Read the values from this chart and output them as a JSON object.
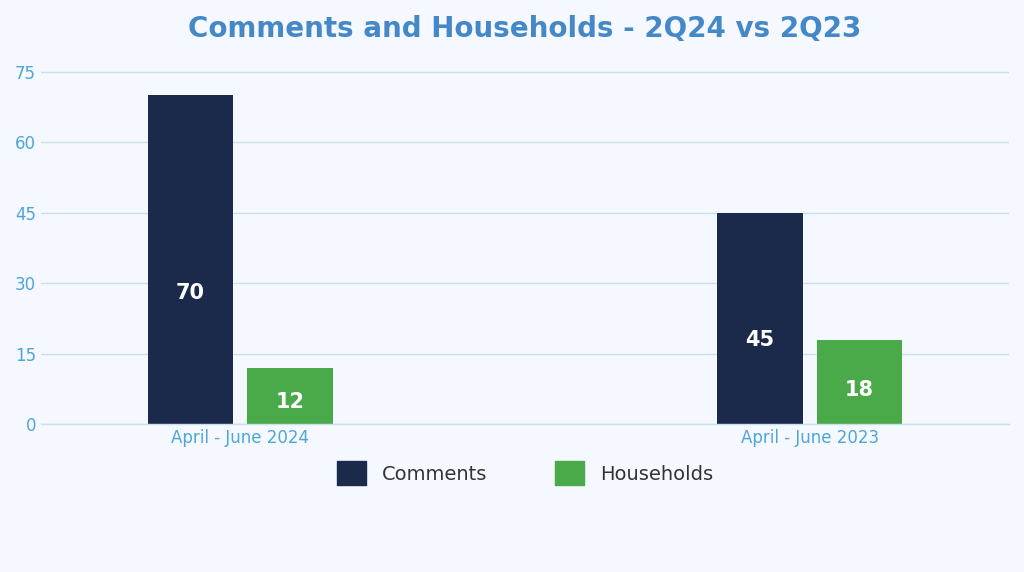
{
  "title": "Comments and Households - 2Q24 vs 2Q23",
  "title_color": "#4488c8",
  "title_fontsize": 20,
  "groups": [
    "April - June 2024",
    "April - June 2023"
  ],
  "series": {
    "Comments": [
      70,
      45
    ],
    "Households": [
      12,
      18
    ]
  },
  "bar_colors": {
    "Comments": "#1b2a4a",
    "Households": "#4aaa4a"
  },
  "ylim": [
    0,
    78
  ],
  "yticks": [
    0,
    15,
    30,
    45,
    60,
    75
  ],
  "ytick_color": "#4da6d9",
  "xtick_color": "#4da6d9",
  "xtick_fontsize": 12,
  "ytick_fontsize": 12,
  "grid_color": "#c8dff0",
  "background_color": "#f5f8fe",
  "bar_label_color": "#ffffff",
  "bar_label_fontsize": 15,
  "bar_label_fontweight": "bold",
  "legend_fontsize": 14,
  "bar_width": 0.3,
  "bar_gap": 0.05,
  "group_centers": [
    1,
    3
  ]
}
